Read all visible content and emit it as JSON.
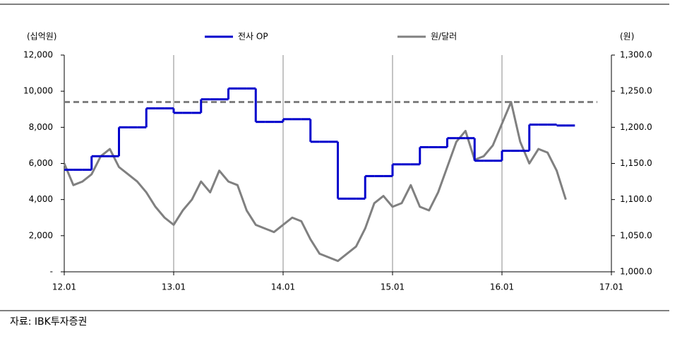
{
  "chart_data": {
    "type": "line",
    "ylabel": "(십억원)",
    "y2label": "(원)",
    "source": "자료: IBK투자증권",
    "categories": [
      "12.01",
      null,
      null,
      null,
      null,
      null,
      null,
      null,
      null,
      null,
      null,
      null,
      "13.01",
      null,
      null,
      null,
      null,
      null,
      null,
      null,
      null,
      null,
      null,
      null,
      "14.01",
      null,
      null,
      null,
      null,
      null,
      null,
      null,
      null,
      null,
      null,
      null,
      "15.01",
      null,
      null,
      null,
      null,
      null,
      null,
      null,
      null,
      null,
      null,
      null,
      "16.01",
      null,
      null,
      null,
      null,
      null,
      null,
      null,
      null,
      null,
      null,
      null,
      "17.01"
    ],
    "series": [
      {
        "name": "전사 OP",
        "color": "#0000cc",
        "axis": "y",
        "step": true,
        "values": [
          5650,
          5650,
          5650,
          6400,
          6400,
          6400,
          8000,
          8000,
          8000,
          9050,
          9050,
          9050,
          8800,
          8800,
          8800,
          9550,
          9550,
          9550,
          10150,
          10150,
          10150,
          8300,
          8300,
          8300,
          8450,
          8450,
          8450,
          7200,
          7200,
          7200,
          4050,
          4050,
          4050,
          5300,
          5300,
          5300,
          5950,
          5950,
          5950,
          6900,
          6900,
          6900,
          7400,
          7400,
          7400,
          6150,
          6150,
          6150,
          6700,
          6700,
          6700,
          8150,
          8150,
          8150,
          8100,
          8100,
          null,
          null,
          null,
          null,
          null
        ]
      },
      {
        "name": "원/달러",
        "color": "#808080",
        "axis": "y2",
        "step": false,
        "values": [
          1150,
          1120,
          1125,
          1135,
          1160,
          1170,
          1145,
          1135,
          1125,
          1110,
          1090,
          1075,
          1065,
          1085,
          1100,
          1125,
          1110,
          1140,
          1125,
          1120,
          1085,
          1065,
          1060,
          1055,
          1065,
          1075,
          1070,
          1045,
          1025,
          1020,
          1015,
          1025,
          1035,
          1060,
          1095,
          1105,
          1090,
          1095,
          1120,
          1090,
          1085,
          1110,
          1145,
          1180,
          1195,
          1155,
          1160,
          1175,
          1205,
          1235,
          1180,
          1150,
          1170,
          1165,
          1140,
          1100,
          null,
          null,
          null,
          null,
          null
        ]
      }
    ],
    "hlines": [
      {
        "axis": "y2",
        "value": 1235,
        "color": "#808080",
        "dashed": true
      }
    ],
    "ylim": [
      0,
      12000
    ],
    "yticks": [
      {
        "value": 0,
        "label": "-"
      },
      {
        "value": 2000,
        "label": "2,000"
      },
      {
        "value": 4000,
        "label": "4,000"
      },
      {
        "value": 6000,
        "label": "6,000"
      },
      {
        "value": 8000,
        "label": "8,000"
      },
      {
        "value": 10000,
        "label": "10,000"
      },
      {
        "value": 12000,
        "label": "12,000"
      }
    ],
    "y2lim": [
      1000,
      1300
    ],
    "y2ticks": [
      {
        "value": 1000,
        "label": "1,000.0"
      },
      {
        "value": 1050,
        "label": "1,050.0"
      },
      {
        "value": 1100,
        "label": "1,100.0"
      },
      {
        "value": 1150,
        "label": "1,150.0"
      },
      {
        "value": 1200,
        "label": "1,200.0"
      },
      {
        "value": 1250,
        "label": "1,250.0"
      },
      {
        "value": 1300,
        "label": "1,300.0"
      }
    ],
    "xgrid": true
  }
}
